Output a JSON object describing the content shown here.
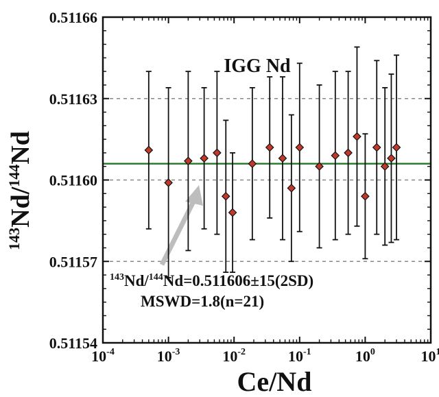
{
  "chart_data": {
    "type": "scatter",
    "title": "IGG Nd",
    "xlabel": "Ce/Nd",
    "ylabel_parts": [
      "143",
      "Nd/",
      "144",
      "Nd"
    ],
    "x_scale": "log",
    "xlim": [
      0.0001,
      10
    ],
    "ylim": [
      0.51154,
      0.51166
    ],
    "x_ticks": [
      {
        "value": 0.0001,
        "base": "10",
        "exp": "-4"
      },
      {
        "value": 0.001,
        "base": "10",
        "exp": "-3"
      },
      {
        "value": 0.01,
        "base": "10",
        "exp": "-2"
      },
      {
        "value": 0.1,
        "base": "10",
        "exp": "-1"
      },
      {
        "value": 1,
        "base": "10",
        "exp": "0"
      },
      {
        "value": 10,
        "base": "10",
        "exp": "1"
      }
    ],
    "y_ticks": [
      "0.51154",
      "0.51157",
      "0.51160",
      "0.51163",
      "0.51166"
    ],
    "mean_line": {
      "y": 0.511606,
      "color": "#2e7d32"
    },
    "dashed_lines": [
      0.51157,
      0.5116,
      0.51163
    ],
    "marker_color": "#c0392b",
    "points": [
      {
        "x": 0.0005,
        "y": 0.511611,
        "err": 2.9e-05
      },
      {
        "x": 0.001,
        "y": 0.511599,
        "err": 3.5e-05
      },
      {
        "x": 0.002,
        "y": 0.511607,
        "err": 3.3e-05
      },
      {
        "x": 0.0035,
        "y": 0.511608,
        "err": 2.6e-05
      },
      {
        "x": 0.0055,
        "y": 0.51161,
        "err": 3e-05
      },
      {
        "x": 0.0075,
        "y": 0.511594,
        "err": 2.8e-05
      },
      {
        "x": 0.0095,
        "y": 0.511588,
        "err": 2.2e-05
      },
      {
        "x": 0.019,
        "y": 0.511606,
        "err": 2.8e-05
      },
      {
        "x": 0.035,
        "y": 0.511612,
        "err": 2.6e-05
      },
      {
        "x": 0.055,
        "y": 0.511608,
        "err": 3e-05
      },
      {
        "x": 0.075,
        "y": 0.511597,
        "err": 2.7e-05
      },
      {
        "x": 0.1,
        "y": 0.511612,
        "err": 3.1e-05
      },
      {
        "x": 0.2,
        "y": 0.511605,
        "err": 3e-05
      },
      {
        "x": 0.35,
        "y": 0.511609,
        "err": 3.1e-05
      },
      {
        "x": 0.55,
        "y": 0.51161,
        "err": 3e-05
      },
      {
        "x": 0.75,
        "y": 0.511616,
        "err": 3.3e-05
      },
      {
        "x": 1.0,
        "y": 0.511594,
        "err": 2.3e-05
      },
      {
        "x": 1.5,
        "y": 0.511612,
        "err": 3.2e-05
      },
      {
        "x": 2.0,
        "y": 0.511605,
        "err": 2.9e-05
      },
      {
        "x": 2.5,
        "y": 0.511608,
        "err": 3.1e-05
      },
      {
        "x": 3.0,
        "y": 0.511612,
        "err": 3.4e-05
      }
    ],
    "annotation": {
      "line1_parts": [
        "143",
        "Nd/",
        "144",
        "Nd=0.511606",
        "±",
        "15(2SD)"
      ],
      "line2": "MSWD=1.8(n=21)"
    },
    "arrow_color": "#bdbdbd"
  }
}
